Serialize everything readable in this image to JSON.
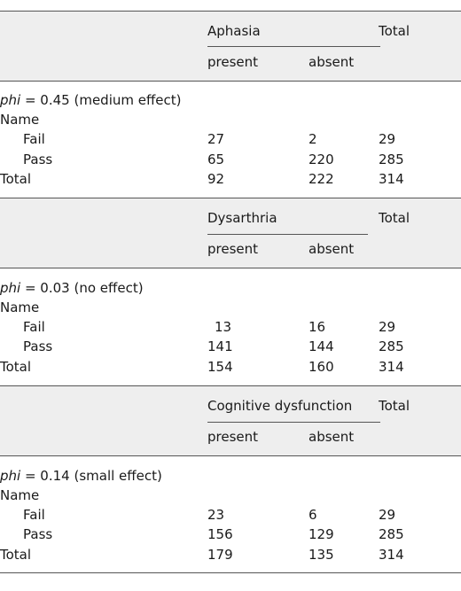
{
  "header": {
    "total": "Total",
    "present": "present",
    "absent": "absent"
  },
  "labels": {
    "name": "Name",
    "fail": "Fail",
    "pass": "Pass",
    "total": "Total",
    "phi": "phi"
  },
  "sections": [
    {
      "group": "Aphasia",
      "phi_value": " = 0.45 (medium effect)",
      "fail": [
        "27",
        "2",
        "29"
      ],
      "pass": [
        "65",
        "220",
        "285"
      ],
      "total": [
        "92",
        "222",
        "314"
      ]
    },
    {
      "group": "Dysarthria",
      "phi_value": " = 0.03 (no effect)",
      "fail": [
        "13",
        "16",
        "29"
      ],
      "pass": [
        "141",
        "144",
        "285"
      ],
      "total": [
        "154",
        "160",
        "314"
      ]
    },
    {
      "group": "Cognitive dysfunction",
      "phi_value": " = 0.14 (small effect)",
      "fail": [
        "23",
        "6",
        "29"
      ],
      "pass": [
        "156",
        "129",
        "285"
      ],
      "total": [
        "179",
        "135",
        "314"
      ]
    }
  ]
}
